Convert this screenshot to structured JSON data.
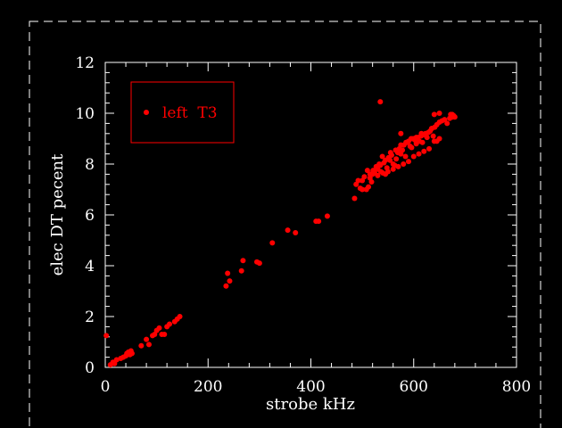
{
  "chart_data": {
    "type": "scatter",
    "xlabel": "strobe kHz",
    "ylabel": "elec DT pecent",
    "xlim": [
      0,
      800
    ],
    "ylim": [
      0,
      12
    ],
    "x_ticks": [
      0,
      200,
      400,
      600,
      800
    ],
    "y_ticks": [
      0,
      2,
      4,
      6,
      8,
      10,
      12
    ],
    "grid": false,
    "legend_position": "top-left",
    "colors": {
      "background": "#000000",
      "axes": "#ffffff",
      "series": "#ff0000"
    },
    "series": [
      {
        "name": "left  T3",
        "x": [
          2,
          10,
          15,
          18,
          22,
          30,
          35,
          40,
          42,
          45,
          48,
          50,
          52,
          70,
          80,
          85,
          92,
          96,
          100,
          105,
          110,
          115,
          120,
          125,
          135,
          140,
          145,
          235,
          238,
          242,
          265,
          268,
          295,
          300,
          325,
          355,
          370,
          410,
          415,
          432,
          485,
          488,
          492,
          496,
          500,
          504,
          508,
          512,
          515,
          518,
          521,
          524,
          527,
          530,
          533,
          536,
          539,
          542,
          545,
          548,
          551,
          554,
          557,
          560,
          563,
          566,
          569,
          572,
          575,
          578,
          581,
          584,
          587,
          590,
          593,
          596,
          599,
          602,
          605,
          608,
          611,
          614,
          617,
          620,
          623,
          626,
          629,
          632,
          635,
          638,
          641,
          645,
          650,
          655,
          660,
          665,
          670,
          675,
          678,
          680,
          510,
          520,
          530,
          540,
          550,
          560,
          570,
          580,
          590,
          600,
          610,
          620,
          630,
          640,
          650,
          500,
          515,
          535,
          555,
          575,
          595,
          615,
          635,
          545,
          565,
          585,
          605,
          625,
          645,
          675,
          535,
          575,
          640,
          650,
          672
        ],
        "y": [
          1.25,
          0.1,
          0.2,
          0.15,
          0.3,
          0.35,
          0.4,
          0.45,
          0.55,
          0.6,
          0.5,
          0.65,
          0.55,
          0.85,
          1.1,
          0.9,
          1.25,
          1.3,
          1.45,
          1.55,
          1.3,
          1.3,
          1.6,
          1.7,
          1.8,
          1.9,
          2.0,
          3.2,
          3.7,
          3.4,
          3.8,
          4.2,
          4.15,
          4.1,
          4.9,
          5.4,
          5.3,
          5.75,
          5.75,
          5.95,
          6.65,
          7.2,
          7.35,
          7.05,
          7.0,
          7.5,
          7.0,
          7.1,
          7.6,
          7.3,
          7.75,
          7.65,
          7.9,
          7.8,
          8.0,
          7.7,
          8.3,
          8.05,
          7.6,
          7.85,
          8.25,
          8.15,
          8.35,
          8.0,
          7.95,
          8.2,
          8.45,
          8.6,
          8.4,
          8.55,
          8.75,
          8.3,
          8.85,
          8.9,
          8.7,
          8.65,
          9.0,
          8.95,
          8.8,
          9.05,
          8.9,
          9.1,
          8.85,
          9.15,
          9.2,
          9.05,
          9.25,
          9.3,
          9.4,
          9.1,
          9.45,
          9.55,
          9.65,
          9.7,
          9.75,
          9.6,
          9.8,
          9.85,
          9.9,
          9.85,
          7.75,
          7.6,
          7.55,
          7.65,
          7.7,
          7.8,
          7.9,
          8.0,
          8.1,
          8.3,
          8.4,
          8.5,
          8.6,
          8.9,
          9.0,
          7.35,
          7.45,
          7.95,
          8.45,
          8.75,
          9.0,
          9.2,
          9.4,
          8.15,
          8.55,
          8.85,
          9.05,
          9.2,
          8.9,
          9.95,
          10.45,
          9.2,
          9.95,
          10.0,
          9.95
        ]
      }
    ]
  }
}
